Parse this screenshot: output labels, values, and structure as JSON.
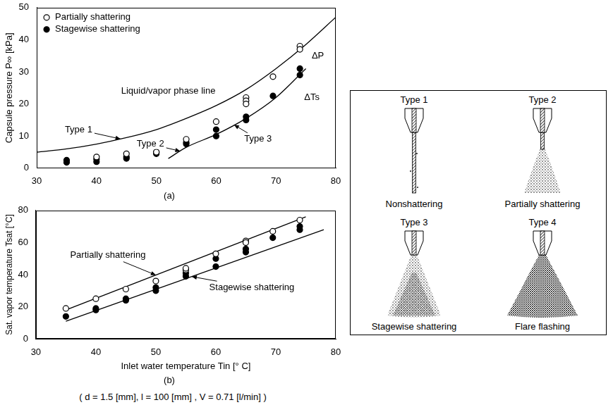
{
  "chart_data": [
    {
      "type": "scatter",
      "title": "(a)",
      "y_label": "Capsule pressure P∞ [kPa]",
      "xlim": [
        30,
        80
      ],
      "xticks": [
        30,
        40,
        50,
        60,
        70,
        80
      ],
      "ylim": [
        0,
        50
      ],
      "yticks": [
        0,
        10,
        20,
        30,
        40,
        50
      ],
      "grid": false,
      "legend": "upper left",
      "series": [
        {
          "name": "Partially shattering",
          "marker": "open_circle",
          "color": "#000000",
          "x": [
            40,
            45,
            50,
            55,
            60,
            65,
            65,
            65,
            69.5,
            74,
            74
          ],
          "values": [
            3.5,
            4.5,
            5,
            9,
            14.5,
            22,
            21,
            20,
            28.5,
            38,
            37
          ]
        },
        {
          "name": "Stagewise shattering",
          "marker": "filled_circle",
          "color": "#000000",
          "x": [
            35,
            35,
            40,
            40,
            45,
            45,
            50,
            50,
            55,
            55,
            60,
            60,
            65,
            65,
            69.5,
            74,
            74
          ],
          "values": [
            2.5,
            1.8,
            2.8,
            2,
            3.5,
            3,
            5,
            4.5,
            8,
            7.5,
            12,
            10,
            16,
            15,
            22.5,
            31,
            29
          ]
        },
        {
          "type": "line",
          "marker": "none",
          "line_style": "solid",
          "color": "#000000",
          "x": [
            30,
            35,
            40,
            45,
            50,
            55,
            60,
            65,
            70,
            75,
            80
          ],
          "values": [
            5,
            6,
            7.5,
            9.5,
            12,
            15.5,
            19.5,
            24.5,
            31,
            38.5,
            47
          ]
        },
        {
          "type": "line",
          "marker": "none",
          "line_style": "solid",
          "color": "#000000",
          "x": [
            52,
            55,
            60,
            65,
            70,
            75
          ],
          "values": [
            3,
            6.5,
            10.5,
            15.5,
            22,
            31
          ]
        }
      ],
      "annotations": [
        {
          "text": "Type 1",
          "x": 37,
          "y": 12,
          "arrow_to": [
            44,
            9.1
          ]
        },
        {
          "text": "Liquid/vapor phase line",
          "x": 52,
          "y": 24
        },
        {
          "text": "Type 2",
          "x": 49,
          "y": 7.5,
          "arrow_to": [
            54,
            5.3
          ]
        },
        {
          "text": "Type 3",
          "x": 67,
          "y": 9,
          "arrow_to": [
            63,
            13.5
          ]
        },
        {
          "text": "ΔP",
          "x": 77,
          "y": 35
        },
        {
          "text": "ΔTs",
          "x": 76,
          "y": 22
        }
      ]
    },
    {
      "type": "scatter",
      "title": "(b)",
      "x_label": "Inlet water temperature Tin [° C]",
      "y_label": "Sat. vapor temperature Tsat [°C]",
      "xlim": [
        30,
        80
      ],
      "xticks": [
        30,
        40,
        50,
        60,
        70,
        80
      ],
      "ylim": [
        0,
        80
      ],
      "yticks": [
        0,
        20,
        40,
        60,
        80
      ],
      "grid": false,
      "series": [
        {
          "marker": "open_circle",
          "color": "#000000",
          "x": [
            35,
            40,
            45,
            50,
            55,
            55,
            60,
            65,
            65,
            69.5,
            74
          ],
          "values": [
            19,
            25,
            31,
            36,
            43,
            44,
            53,
            61,
            60,
            67,
            74
          ]
        },
        {
          "marker": "filled_circle",
          "color": "#000000",
          "x": [
            35,
            40,
            40,
            45,
            45,
            50,
            50,
            55,
            55,
            60,
            60,
            65,
            65,
            69.5,
            74,
            74
          ],
          "values": [
            14,
            19,
            18,
            25,
            24,
            32,
            30,
            41,
            39,
            50,
            45,
            56,
            54,
            63,
            70,
            68
          ]
        },
        {
          "type": "line",
          "marker": "none",
          "line_style": "solid",
          "color": "#000000",
          "x": [
            35,
            75
          ],
          "values": [
            18,
            76
          ]
        },
        {
          "type": "line",
          "marker": "none",
          "line_style": "solid",
          "color": "#000000",
          "x": [
            35,
            78
          ],
          "values": [
            11,
            68
          ]
        }
      ],
      "annotations": [
        {
          "text": "Partially shattering",
          "x": 42,
          "y": 52,
          "arrow_to": [
            50,
            39.75
          ]
        },
        {
          "text": "Stagewise shattering",
          "x": 66,
          "y": 32,
          "arrow_to": [
            56,
            38.8
          ]
        }
      ]
    }
  ],
  "caption": "( d = 1.5 [mm], l = 100 [mm] , V = 0.71 [l/min] )",
  "diagram": {
    "panels": [
      {
        "title": "Type 1",
        "caption": "Nonshattering"
      },
      {
        "title": "Type 2",
        "caption": "Partially shattering"
      },
      {
        "title": "Type 3",
        "caption": "Stagewise shattering"
      },
      {
        "title": "Type 4",
        "caption": "Flare flashing"
      }
    ]
  }
}
